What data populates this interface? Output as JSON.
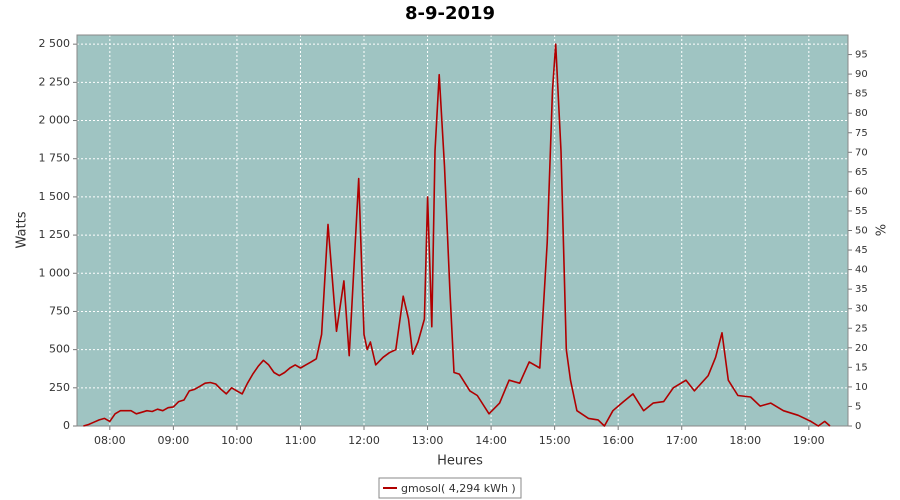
{
  "chart_data": {
    "type": "line",
    "title": "8-9-2019",
    "x_label": "Heures",
    "y_label": "Watts",
    "y2_label": "%",
    "x": [
      455,
      460,
      465,
      470,
      475,
      480,
      485,
      490,
      495,
      500,
      505,
      510,
      515,
      520,
      525,
      530,
      535,
      540,
      545,
      550,
      555,
      560,
      565,
      570,
      575,
      580,
      585,
      590,
      595,
      600,
      605,
      610,
      615,
      620,
      625,
      630,
      635,
      640,
      645,
      650,
      655,
      660,
      665,
      670,
      675,
      680,
      686,
      694,
      701,
      706,
      715,
      720,
      723,
      726,
      731,
      738,
      744,
      750,
      757,
      762,
      766,
      771,
      777,
      780,
      784,
      787,
      791,
      796,
      801,
      805,
      810,
      820,
      827,
      838,
      848,
      857,
      867,
      876,
      886,
      893,
      898,
      901,
      906,
      911,
      915,
      921,
      932,
      941,
      947,
      955,
      965,
      974,
      984,
      993,
      1003,
      1012,
      1024,
      1032,
      1045,
      1052,
      1058,
      1064,
      1073,
      1085,
      1094,
      1104,
      1116,
      1130,
      1142,
      1149,
      1155,
      1160
    ],
    "series": [
      {
        "name": "gmosol( 4,294 kWh )",
        "color": "#b00000",
        "values": [
          0,
          10,
          25,
          40,
          50,
          30,
          80,
          100,
          100,
          100,
          80,
          90,
          100,
          95,
          110,
          100,
          120,
          125,
          160,
          170,
          230,
          240,
          260,
          280,
          285,
          275,
          240,
          210,
          250,
          230,
          210,
          280,
          340,
          390,
          430,
          400,
          350,
          330,
          350,
          380,
          400,
          380,
          400,
          420,
          440,
          600,
          1320,
          620,
          950,
          460,
          1620,
          600,
          500,
          550,
          400,
          450,
          480,
          500,
          850,
          700,
          470,
          550,
          700,
          1500,
          650,
          1800,
          2300,
          1700,
          900,
          350,
          340,
          230,
          200,
          80,
          150,
          300,
          280,
          420,
          380,
          1200,
          2200,
          2500,
          1800,
          500,
          300,
          100,
          50,
          40,
          0,
          100,
          160,
          210,
          100,
          150,
          160,
          250,
          300,
          230,
          330,
          450,
          610,
          300,
          200,
          190,
          130,
          150,
          100,
          70,
          30,
          0,
          30,
          0
        ]
      }
    ],
    "xlim": [
      449,
      1177
    ],
    "xticks": [
      {
        "value": 480,
        "label": "08:00"
      },
      {
        "value": 540,
        "label": "09:00"
      },
      {
        "value": 600,
        "label": "10:00"
      },
      {
        "value": 660,
        "label": "11:00"
      },
      {
        "value": 720,
        "label": "12:00"
      },
      {
        "value": 780,
        "label": "13:00"
      },
      {
        "value": 840,
        "label": "14:00"
      },
      {
        "value": 900,
        "label": "15:00"
      },
      {
        "value": 960,
        "label": "16:00"
      },
      {
        "value": 1020,
        "label": "17:00"
      },
      {
        "value": 1080,
        "label": "18:00"
      },
      {
        "value": 1140,
        "label": "19:00"
      }
    ],
    "ylim": [
      0,
      2560
    ],
    "yticks": [
      0,
      250,
      500,
      750,
      {
        "value": 1000,
        "label": "1 000"
      },
      {
        "value": 1250,
        "label": "1 250"
      },
      {
        "value": 1500,
        "label": "1 500"
      },
      {
        "value": 1750,
        "label": "1 750"
      },
      {
        "value": 2000,
        "label": "2 000"
      },
      {
        "value": 2250,
        "label": "2 250"
      },
      {
        "value": 2500,
        "label": "2 500"
      }
    ],
    "y2lim": [
      0,
      100
    ],
    "y2ticks": [
      0,
      5,
      10,
      15,
      20,
      25,
      30,
      35,
      40,
      45,
      50,
      55,
      60,
      65,
      70,
      75,
      80,
      85,
      90,
      95
    ],
    "grid": true
  }
}
